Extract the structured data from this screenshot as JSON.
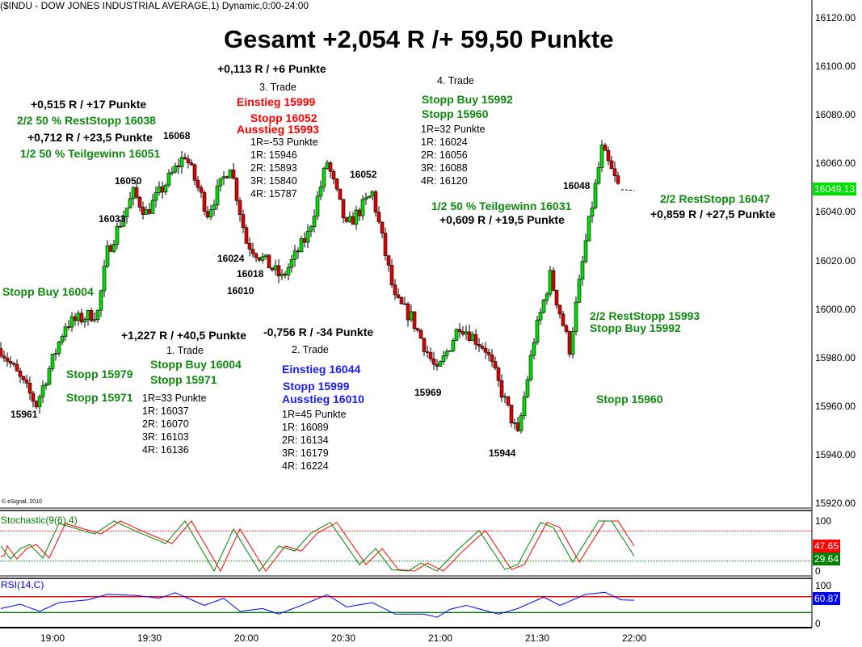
{
  "header": "($INDU - DOW JONES INDUSTRIAL AVERAGE,1) Dynamic,0:00-24:00",
  "title": "Gesamt +2,054 R /+ 59,50 Punkte",
  "copyright": "© eSignal, 2010",
  "colors": {
    "up": "#00e000",
    "down": "#e00000",
    "green_text": "#0f8a0f",
    "red_text": "#ff0000",
    "blue_text": "#1a1aff",
    "stoch_k": "#008000",
    "stoch_d": "#ff0000",
    "rsi": "#0000ff"
  },
  "annotations": {
    "t3_result": "+0,113 R / +6 Punkte",
    "t3_label": "3. Trade",
    "t3_entry": "Einstieg 15999",
    "t3_stop": "Stopp 16052",
    "t3_exit": "Ausstieg 15993",
    "t3_r": "1R=-53 Punkte",
    "t3_1r": "1R: 15946",
    "t3_2r": "2R: 15893",
    "t3_3r": "3R: 15840",
    "t3_4r": "4R: 15787",
    "t1_res2": "+0,515 R / +17 Punkte",
    "t1_rest": "2/2 50 % RestStopp 16038",
    "t1_res1": "+0,712 R / +23,5 Punkte",
    "t1_part": "1/2 50 % Teilgewinn 16051",
    "stopbuy_left": "Stopp Buy 16004",
    "t1_result": "+1,227 R / +40,5 Punkte",
    "t1_label": "1. Trade",
    "t1_stopbuy": "Stopp Buy 16004",
    "t1_stop": "Stopp 15971",
    "stop_15979": "Stopp 15979",
    "stop_15971": "Stopp 15971",
    "t1_r": "1R=33 Punkte",
    "t1_1r": "1R: 16037",
    "t1_2r": "2R: 16070",
    "t1_3r": "3R: 16103",
    "t1_4r": "4R: 16136",
    "t2_result": "-0,756 R / -34 Punkte",
    "t2_label": "2. Trade",
    "t2_entry": "Einstieg 16044",
    "t2_stop": "Stopp 15999",
    "t2_exit": "Ausstieg 16010",
    "t2_r": "1R=45 Punkte",
    "t2_1r": "1R: 16089",
    "t2_2r": "2R: 16134",
    "t2_3r": "3R: 16179",
    "t2_4r": "4R: 16224",
    "t4_label": "4. Trade",
    "t4_stopbuy": "Stopp Buy 15992",
    "t4_stop": "Stopp 15960",
    "t4_r": "1R=32 Punkte",
    "t4_1r": "1R: 16024",
    "t4_2r": "2R: 16056",
    "t4_3r": "3R: 16088",
    "t4_4r": "4R: 16120",
    "t4_part": "1/2 50 % Teilgewinn 16031",
    "t4_res1": "+0,609 R / +19,5 Punkte",
    "t4_rest": "2/2 RestStopp 16047",
    "t4_res2": "+0,859 R / +27,5 Punkte",
    "rest_15993": "2/2 RestStopp 15993",
    "stopbuy_15992": "Stopp Buy 15992",
    "stop_15960": "Stopp 15960"
  },
  "price_labels": {
    "p16068": "16068",
    "p16050": "16050",
    "p16033": "16033",
    "p16024": "16024",
    "p16018": "16018",
    "p16010": "16010",
    "p16052": "16052",
    "p15961": "15961",
    "p15969": "15969",
    "p15944": "15944",
    "p16048": "16048"
  },
  "chart_data": [
    {
      "type": "candlestick",
      "interval": "1 min",
      "ylim": [
        15920,
        16120
      ],
      "y_ticks": [
        "16120.00",
        "16100.00",
        "16080.00",
        "16060.00",
        "16040.00",
        "16020.00",
        "16000.00",
        "15980.00",
        "15960.00",
        "15940.00",
        "15920.00"
      ],
      "x_ticks": [
        "19:00",
        "19:30",
        "20:00",
        "20:30",
        "21:00",
        "21:30",
        "22:00"
      ],
      "last_price": "16049.13",
      "path": [
        [
          "18:44",
          15984
        ],
        [
          "18:55",
          15961
        ],
        [
          "19:04",
          15994
        ],
        [
          "19:14",
          15999
        ],
        [
          "19:17",
          16024
        ],
        [
          "19:25",
          16048
        ],
        [
          "19:29",
          16040
        ],
        [
          "19:41",
          16064
        ],
        [
          "19:48",
          16040
        ],
        [
          "19:55",
          16060
        ],
        [
          "20:00",
          16028
        ],
        [
          "20:05",
          16021
        ],
        [
          "20:11",
          16013
        ],
        [
          "20:19",
          16031
        ],
        [
          "20:25",
          16061
        ],
        [
          "20:31",
          16034
        ],
        [
          "20:39",
          16048
        ],
        [
          "20:46",
          16004
        ],
        [
          "20:51",
          15997
        ],
        [
          "20:59",
          15974
        ],
        [
          "21:06",
          15994
        ],
        [
          "21:14",
          15984
        ],
        [
          "21:24",
          15948
        ],
        [
          "21:29",
          15988
        ],
        [
          "21:34",
          16014
        ],
        [
          "21:40",
          15984
        ],
        [
          "21:45",
          16028
        ],
        [
          "21:50",
          16066
        ],
        [
          "21:55",
          16051
        ],
        [
          "22:00",
          16049
        ]
      ]
    },
    {
      "type": "line",
      "title": "Stochastic(9(6),4)",
      "ylim": [
        0,
        100
      ],
      "y_ticks": [
        "100",
        "0"
      ],
      "levels": [
        80,
        20
      ],
      "k_last": "29.64",
      "d_last": "47.65",
      "k": [
        [
          "18:44",
          50
        ],
        [
          "18:47",
          24
        ],
        [
          "18:50",
          45
        ],
        [
          "18:53",
          53
        ],
        [
          "18:57",
          26
        ],
        [
          "19:02",
          95
        ],
        [
          "19:13",
          74
        ],
        [
          "19:19",
          100
        ],
        [
          "19:26",
          79
        ],
        [
          "19:35",
          55
        ],
        [
          "19:41",
          100
        ],
        [
          "19:50",
          0
        ],
        [
          "19:56",
          84
        ],
        [
          "20:04",
          0
        ],
        [
          "20:10",
          50
        ],
        [
          "20:15",
          40
        ],
        [
          "20:20",
          76
        ],
        [
          "20:26",
          97
        ],
        [
          "20:35",
          13
        ],
        [
          "20:40",
          45
        ],
        [
          "20:45",
          3
        ],
        [
          "20:50",
          0
        ],
        [
          "20:54",
          16
        ],
        [
          "20:59",
          0
        ],
        [
          "21:05",
          40
        ],
        [
          "21:12",
          81
        ],
        [
          "21:20",
          3
        ],
        [
          "21:24",
          13
        ],
        [
          "21:31",
          97
        ],
        [
          "21:35",
          87
        ],
        [
          "21:41",
          18
        ],
        [
          "21:49",
          100
        ],
        [
          "21:53",
          100
        ],
        [
          "22:00",
          30
        ]
      ]
    },
    {
      "type": "line",
      "title": "RSI(14,C)",
      "ylim": [
        0,
        100
      ],
      "y_ticks": [
        "100",
        "0"
      ],
      "levels": [
        70,
        30
      ],
      "last": "60.87",
      "values": [
        [
          "18:44",
          40
        ],
        [
          "18:50",
          51
        ],
        [
          "18:56",
          33
        ],
        [
          "19:02",
          55
        ],
        [
          "19:11",
          62
        ],
        [
          "19:17",
          76
        ],
        [
          "19:26",
          73
        ],
        [
          "19:33",
          66
        ],
        [
          "19:38",
          80
        ],
        [
          "19:47",
          48
        ],
        [
          "19:53",
          66
        ],
        [
          "19:58",
          33
        ],
        [
          "20:05",
          40
        ],
        [
          "20:10",
          26
        ],
        [
          "20:17",
          48
        ],
        [
          "20:25",
          75
        ],
        [
          "20:31",
          44
        ],
        [
          "20:39",
          55
        ],
        [
          "20:46",
          26
        ],
        [
          "20:55",
          26
        ],
        [
          "20:59",
          18
        ],
        [
          "21:03",
          38
        ],
        [
          "21:08",
          48
        ],
        [
          "21:18",
          26
        ],
        [
          "21:24",
          40
        ],
        [
          "21:32",
          69
        ],
        [
          "21:37",
          48
        ],
        [
          "21:45",
          76
        ],
        [
          "21:51",
          81
        ],
        [
          "21:56",
          62
        ],
        [
          "22:00",
          61
        ]
      ]
    }
  ]
}
